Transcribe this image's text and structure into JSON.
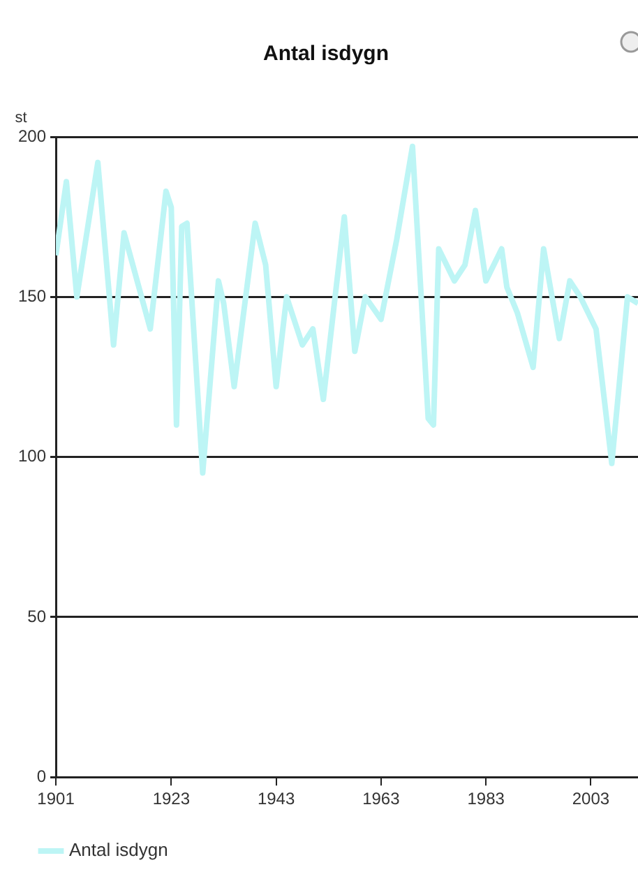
{
  "chart_data": {
    "type": "line",
    "title": "Antal isdygn",
    "ylabel": "st",
    "x": [
      1901,
      1903,
      1905,
      1909,
      1912,
      1914,
      1919,
      1922,
      1923,
      1924,
      1925,
      1926,
      1929,
      1932,
      1933,
      1935,
      1939,
      1941,
      1943,
      1945,
      1948,
      1950,
      1952,
      1956,
      1958,
      1960,
      1963,
      1966,
      1969,
      1972,
      1973,
      1974,
      1977,
      1979,
      1981,
      1983,
      1986,
      1987,
      1989,
      1992,
      1994,
      1997,
      1999,
      2001,
      2004,
      2007,
      2010,
      2012
    ],
    "series": [
      {
        "name": "Antal isdygn",
        "color": "#bdf5f5",
        "values": [
          163,
          186,
          150,
          192,
          135,
          170,
          140,
          183,
          178,
          110,
          172,
          173,
          95,
          155,
          148,
          122,
          173,
          160,
          122,
          150,
          135,
          140,
          118,
          175,
          133,
          150,
          143,
          168,
          197,
          112,
          110,
          165,
          155,
          160,
          177,
          155,
          165,
          153,
          145,
          128,
          165,
          137,
          155,
          150,
          140,
          98,
          150,
          148
        ]
      }
    ],
    "xlim": [
      1901,
      2012
    ],
    "xticks": [
      1901,
      1923,
      1943,
      1963,
      1983,
      2003
    ],
    "ylim": [
      0,
      200
    ],
    "yticks": [
      0,
      50,
      100,
      150,
      200
    ],
    "grid": "y",
    "legend": "bottom",
    "marker": "none",
    "line_style": "solid"
  }
}
